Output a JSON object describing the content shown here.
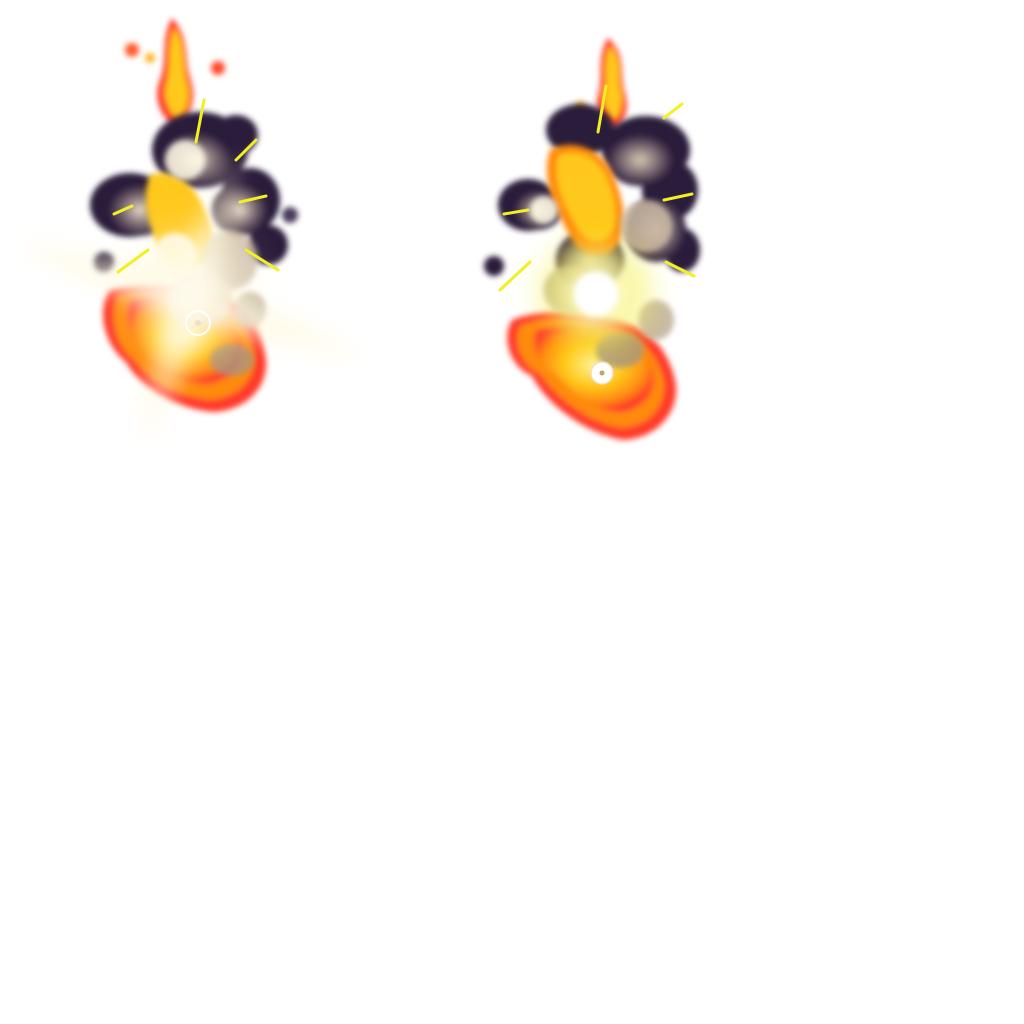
{
  "sprite_sheet": {
    "background_color": "#ffffff",
    "frame_count": 2,
    "frames": [
      {
        "name": "explosion-frame-1"
      },
      {
        "name": "explosion-frame-2"
      }
    ],
    "palette": {
      "fire_outer": "#ff3a2a",
      "fire_mid": "#ff8a10",
      "fire_core": "#ffd21a",
      "fire_hot": "#fff4a0",
      "smoke_dark": "#2a1a3a",
      "smoke_mid": "#6a5a6a",
      "dust": "#c9b7a2",
      "spark": "#f2ef22",
      "flash": "#fffbe6"
    }
  }
}
